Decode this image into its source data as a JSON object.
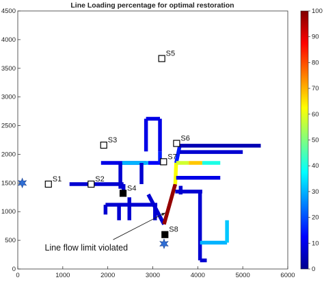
{
  "chart_data": {
    "type": "line",
    "title": "Line Loading percentage for optimal restoration",
    "xlabel": "",
    "ylabel": "",
    "xlim": [
      0,
      6000
    ],
    "ylim": [
      0,
      4500
    ],
    "xticks": [
      0,
      1000,
      2000,
      3000,
      4000,
      5000,
      6000
    ],
    "yticks": [
      0,
      500,
      1000,
      1500,
      2000,
      2500,
      3000,
      3500,
      4000,
      4500
    ],
    "grid": false,
    "colorbar": {
      "range": [
        0,
        100
      ],
      "ticks": [
        0,
        10,
        20,
        30,
        40,
        50,
        60,
        70,
        80,
        90,
        100
      ],
      "colormap": "jet"
    },
    "stations": [
      {
        "label": "S1",
        "x": 680,
        "y": 1480,
        "filled": false
      },
      {
        "label": "S2",
        "x": 1630,
        "y": 1480,
        "filled": false
      },
      {
        "label": "S3",
        "x": 1910,
        "y": 2160,
        "filled": false
      },
      {
        "label": "S4",
        "x": 2340,
        "y": 1320,
        "filled": true
      },
      {
        "label": "S5",
        "x": 3200,
        "y": 3670,
        "filled": false
      },
      {
        "label": "S6",
        "x": 3530,
        "y": 2190,
        "filled": false
      },
      {
        "label": "S7",
        "x": 3240,
        "y": 1870,
        "filled": false
      },
      {
        "label": "S8",
        "x": 3270,
        "y": 600,
        "filled": true
      }
    ],
    "sources": [
      {
        "x": 100,
        "y": 1500
      },
      {
        "x": 3250,
        "y": 440
      }
    ],
    "annotation": {
      "text": "Line flow limit violated",
      "text_x": 600,
      "text_y": 320,
      "arrow_to": [
        3280,
        980
      ]
    },
    "lines": [
      {
        "x": [
          1150,
          2350
        ],
        "y": [
          1480,
          1480
        ],
        "loading": 8
      },
      {
        "x": [
          2350,
          2350
        ],
        "y": [
          1480,
          1320
        ],
        "loading": 8
      },
      {
        "x": [
          1850,
          2850
        ],
        "y": [
          1850,
          1850
        ],
        "loading": 10
      },
      {
        "x": [
          2320,
          2900
        ],
        "y": [
          1850,
          1850
        ],
        "loading": 30
      },
      {
        "x": [
          2900,
          3180
        ],
        "y": [
          1850,
          1850
        ],
        "loading": 12
      },
      {
        "x": [
          2280,
          2280
        ],
        "y": [
          1850,
          1400
        ],
        "loading": 8
      },
      {
        "x": [
          2750,
          2750
        ],
        "y": [
          1850,
          1480
        ],
        "loading": 8
      },
      {
        "x": [
          2850,
          2850
        ],
        "y": [
          2620,
          2050
        ],
        "loading": 10
      },
      {
        "x": [
          2850,
          3160
        ],
        "y": [
          2620,
          2620
        ],
        "loading": 10
      },
      {
        "x": [
          3160,
          3160
        ],
        "y": [
          2620,
          2050
        ],
        "loading": 10
      },
      {
        "x": [
          3160,
          3160
        ],
        "y": [
          2050,
          1850
        ],
        "loading": 15
      },
      {
        "x": [
          1950,
          3100
        ],
        "y": [
          1120,
          1120
        ],
        "loading": 8
      },
      {
        "x": [
          1950,
          1950
        ],
        "y": [
          1120,
          950
        ],
        "loading": 8
      },
      {
        "x": [
          2250,
          2250
        ],
        "y": [
          1120,
          850
        ],
        "loading": 8
      },
      {
        "x": [
          2480,
          2480
        ],
        "y": [
          1250,
          850
        ],
        "loading": 8
      },
      {
        "x": [
          3050,
          3050
        ],
        "y": [
          1120,
          850
        ],
        "loading": 8
      },
      {
        "x": [
          2900,
          3250
        ],
        "y": [
          1300,
          780
        ],
        "loading": 8
      },
      {
        "x": [
          3250,
          3500
        ],
        "y": [
          780,
          1480
        ],
        "loading": 98
      },
      {
        "x": [
          3500,
          3520
        ],
        "y": [
          1480,
          1850
        ],
        "loading": 62
      },
      {
        "x": [
          3520,
          3600
        ],
        "y": [
          1850,
          2150
        ],
        "loading": 15
      },
      {
        "x": [
          3600,
          5400
        ],
        "y": [
          2150,
          2150
        ],
        "loading": 5
      },
      {
        "x": [
          3600,
          5000
        ],
        "y": [
          2040,
          2040
        ],
        "loading": 8
      },
      {
        "x": [
          3520,
          3800
        ],
        "y": [
          1850,
          1850
        ],
        "loading": 58
      },
      {
        "x": [
          3800,
          4100
        ],
        "y": [
          1850,
          1850
        ],
        "loading": 68
      },
      {
        "x": [
          4100,
          4500
        ],
        "y": [
          1850,
          1850
        ],
        "loading": 40
      },
      {
        "x": [
          3520,
          4500
        ],
        "y": [
          1590,
          1590
        ],
        "loading": 10
      },
      {
        "x": [
          3500,
          4100
        ],
        "y": [
          1350,
          1350
        ],
        "loading": 8
      },
      {
        "x": [
          3620,
          3620
        ],
        "y": [
          1450,
          1300
        ],
        "loading": 8
      },
      {
        "x": [
          4050,
          4050
        ],
        "y": [
          1350,
          150
        ],
        "loading": 8
      },
      {
        "x": [
          4050,
          4200
        ],
        "y": [
          150,
          150
        ],
        "loading": 8
      },
      {
        "x": [
          4050,
          4650
        ],
        "y": [
          460,
          460
        ],
        "loading": 30
      },
      {
        "x": [
          4650,
          4650
        ],
        "y": [
          460,
          850
        ],
        "loading": 32
      }
    ]
  }
}
